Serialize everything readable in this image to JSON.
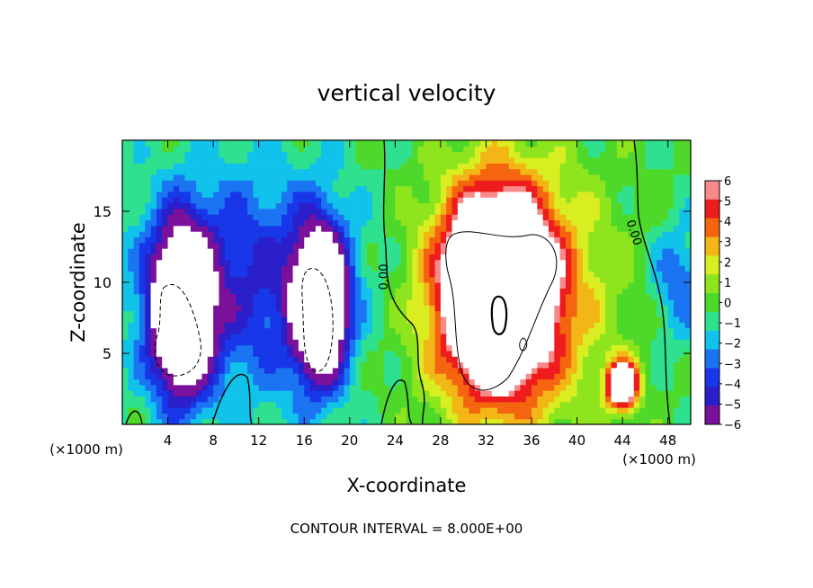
{
  "chart_data": {
    "type": "heatmap",
    "title": "vertical velocity",
    "xlabel": "X-coordinate",
    "ylabel": "Z-coordinate",
    "x_unit_left": "(×1000 m)",
    "x_unit_right": "(×1000 m)",
    "footer": "CONTOUR INTERVAL = 8.000E+00",
    "xlim": [
      0,
      50
    ],
    "ylim": [
      0,
      20
    ],
    "x_ticks": [
      4,
      8,
      12,
      16,
      20,
      24,
      28,
      32,
      36,
      40,
      44,
      48
    ],
    "y_ticks": [
      5,
      10,
      15
    ],
    "contour_labels": [
      {
        "text": "0.00",
        "x": 22.9,
        "y": 10.5,
        "angle": -90
      },
      {
        "text": "0.00",
        "x": 44.8,
        "y": 14.5,
        "angle": 70
      }
    ],
    "colorbar": {
      "levels": [
        -6,
        -5,
        -4,
        -3,
        -2,
        -1,
        0,
        1,
        2,
        3,
        4,
        5,
        6
      ],
      "labels": [
        "6",
        "5",
        "4",
        "3",
        "2",
        "1",
        "0",
        "−1",
        "−2",
        "−3",
        "−4",
        "−5",
        "−6"
      ],
      "colors": [
        "#7b119b",
        "#2a1fc8",
        "#1837e8",
        "#1b74f2",
        "#11c2ea",
        "#2fe18f",
        "#4ed92a",
        "#8ee51e",
        "#d8ee20",
        "#f3b617",
        "#f5650f",
        "#ee1c1c",
        "#f88a8a"
      ]
    },
    "features": [
      {
        "kind": "downdraft",
        "cx": 5.2,
        "cz": 8.0,
        "sx": 2.5,
        "sz": 5.5,
        "w": -14,
        "note": "saturated below -6"
      },
      {
        "kind": "downdraft",
        "cx": 17.4,
        "cz": 8.5,
        "sx": 2.2,
        "sz": 5.0,
        "w": -14,
        "note": "saturated below -6"
      },
      {
        "kind": "updraft",
        "cx": 33.0,
        "cz": 9.5,
        "sx": 4.5,
        "sz": 6.5,
        "w": 15,
        "note": "saturated above 6"
      },
      {
        "kind": "updraft",
        "cx": 44.0,
        "cz": 2.8,
        "sx": 1.3,
        "sz": 1.6,
        "w": 12,
        "note": "saturated above 6"
      }
    ]
  }
}
